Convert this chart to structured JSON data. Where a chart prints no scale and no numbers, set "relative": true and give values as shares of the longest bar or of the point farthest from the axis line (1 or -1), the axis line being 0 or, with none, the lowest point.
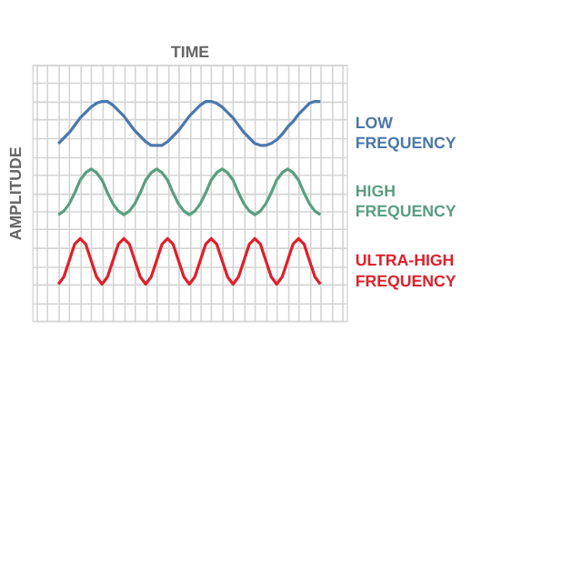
{
  "chart_data": {
    "type": "line",
    "relative": true,
    "xlabel": "TIME",
    "ylabel": "AMPLITUDE",
    "grid": true,
    "legend": false,
    "tick_labels": false,
    "line_style": "solid",
    "marker": "none",
    "categories": [
      null,
      null,
      null,
      null,
      null,
      null,
      null,
      null,
      null,
      null,
      null,
      null,
      null,
      null,
      null,
      null,
      null,
      null,
      null,
      null,
      null,
      null,
      null,
      null,
      null,
      null,
      null,
      null,
      null,
      null,
      null,
      null,
      null,
      null,
      null,
      null,
      null,
      null,
      null,
      null,
      null,
      null,
      null,
      null,
      null,
      null,
      null,
      null,
      null
    ],
    "series": [
      {
        "name": "LOW FREQUENCY",
        "color": "#4a78ad",
        "values": [
          0.77,
          0.8,
          0.83,
          0.87,
          0.91,
          0.94,
          0.97,
          0.99,
          1,
          1,
          0.98,
          0.95,
          0.92,
          0.88,
          0.84,
          0.81,
          0.78,
          0.76,
          0.76,
          0.76,
          0.78,
          0.81,
          0.84,
          0.88,
          0.92,
          0.95,
          0.98,
          1,
          1,
          0.99,
          0.97,
          0.94,
          0.91,
          0.87,
          0.83,
          0.8,
          0.77,
          0.76,
          0.76,
          0.77,
          0.79,
          0.82,
          0.86,
          0.89,
          0.93,
          0.96,
          0.99,
          1,
          1
        ]
      },
      {
        "name": "HIGH FREQUENCY",
        "color": "#5a9e80",
        "values": [
          0.38,
          0.4,
          0.44,
          0.5,
          0.57,
          0.61,
          0.63,
          0.61,
          0.57,
          0.5,
          0.44,
          0.4,
          0.38,
          0.4,
          0.44,
          0.5,
          0.57,
          0.61,
          0.63,
          0.61,
          0.57,
          0.5,
          0.44,
          0.4,
          0.38,
          0.4,
          0.44,
          0.5,
          0.57,
          0.61,
          0.63,
          0.61,
          0.57,
          0.5,
          0.44,
          0.4,
          0.38,
          0.4,
          0.44,
          0.5,
          0.57,
          0.61,
          0.63,
          0.61,
          0.57,
          0.5,
          0.44,
          0.4,
          0.38
        ]
      },
      {
        "name": "ULTRA-HIGH FREQUENCY",
        "color": "#e0202a",
        "values": [
          0,
          0.04,
          0.13,
          0.22,
          0.25,
          0.22,
          0.13,
          0.04,
          0,
          0.04,
          0.13,
          0.22,
          0.25,
          0.22,
          0.13,
          0.04,
          0,
          0.04,
          0.13,
          0.22,
          0.25,
          0.22,
          0.13,
          0.04,
          0,
          0.04,
          0.13,
          0.22,
          0.25,
          0.22,
          0.13,
          0.04,
          0,
          0.04,
          0.13,
          0.22,
          0.25,
          0.22,
          0.13,
          0.04,
          0,
          0.04,
          0.13,
          0.22,
          0.25,
          0.22,
          0.13,
          0.04,
          0
        ]
      }
    ]
  }
}
